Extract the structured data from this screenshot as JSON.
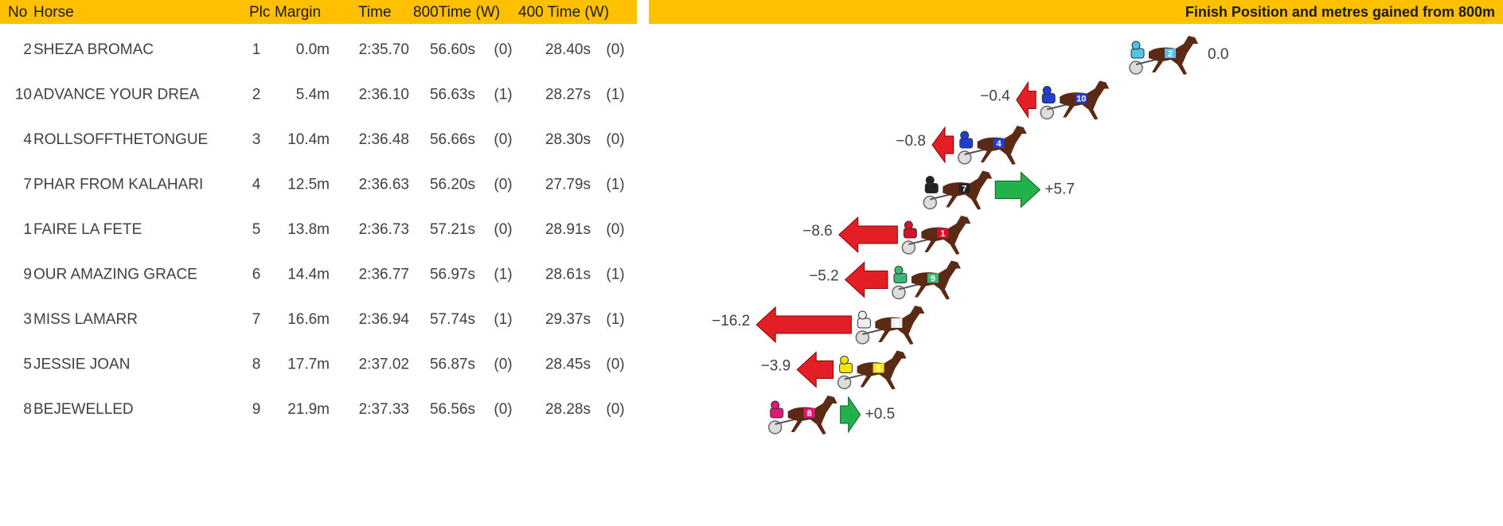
{
  "table": {
    "columns": [
      "No",
      "Horse",
      "Plc",
      "Margin",
      "Time",
      "800Time (W)",
      "400 Time (W)"
    ],
    "rows": [
      [
        "2",
        "SHEZA BROMAC",
        "1",
        "0.0m",
        "2:35.70",
        "56.60s",
        "(0)",
        "28.40s",
        "(0)"
      ],
      [
        "10",
        "ADVANCE YOUR DREA",
        "2",
        "5.4m",
        "2:36.10",
        "56.63s",
        "(1)",
        "28.27s",
        "(1)"
      ],
      [
        "4",
        "ROLLSOFFTHETONGUE",
        "3",
        "10.4m",
        "2:36.48",
        "56.66s",
        "(0)",
        "28.30s",
        "(0)"
      ],
      [
        "7",
        "PHAR FROM KALAHARI",
        "4",
        "12.5m",
        "2:36.63",
        "56.20s",
        "(0)",
        "27.79s",
        "(1)"
      ],
      [
        "1",
        "FAIRE LA FETE",
        "5",
        "13.8m",
        "2:36.73",
        "57.21s",
        "(0)",
        "28.91s",
        "(0)"
      ],
      [
        "9",
        "OUR AMAZING GRACE",
        "6",
        "14.4m",
        "2:36.77",
        "56.97s",
        "(1)",
        "28.61s",
        "(1)"
      ],
      [
        "3",
        "MISS LAMARR",
        "7",
        "16.6m",
        "2:36.94",
        "57.74s",
        "(1)",
        "29.37s",
        "(1)"
      ],
      [
        "5",
        "JESSIE JOAN",
        "8",
        "17.7m",
        "2:37.02",
        "56.87s",
        "(0)",
        "28.45s",
        "(0)"
      ],
      [
        "8",
        "BEJEWELLED",
        "9",
        "21.9m",
        "2:37.33",
        "56.56s",
        "(0)",
        "28.28s",
        "(0)"
      ]
    ]
  },
  "panel": {
    "title": "Finish Position and metres gained from 800m",
    "gains": {
      "values": [
        0.0,
        -0.4,
        -0.8,
        5.7,
        -8.6,
        -5.2,
        -16.2,
        -3.9,
        0.5
      ],
      "value_labels": [
        "0.0",
        "−0.4",
        "−0.8",
        "+5.7",
        "−8.6",
        "−5.2",
        "−16.2",
        "−3.9",
        "+0.5"
      ]
    }
  }
}
